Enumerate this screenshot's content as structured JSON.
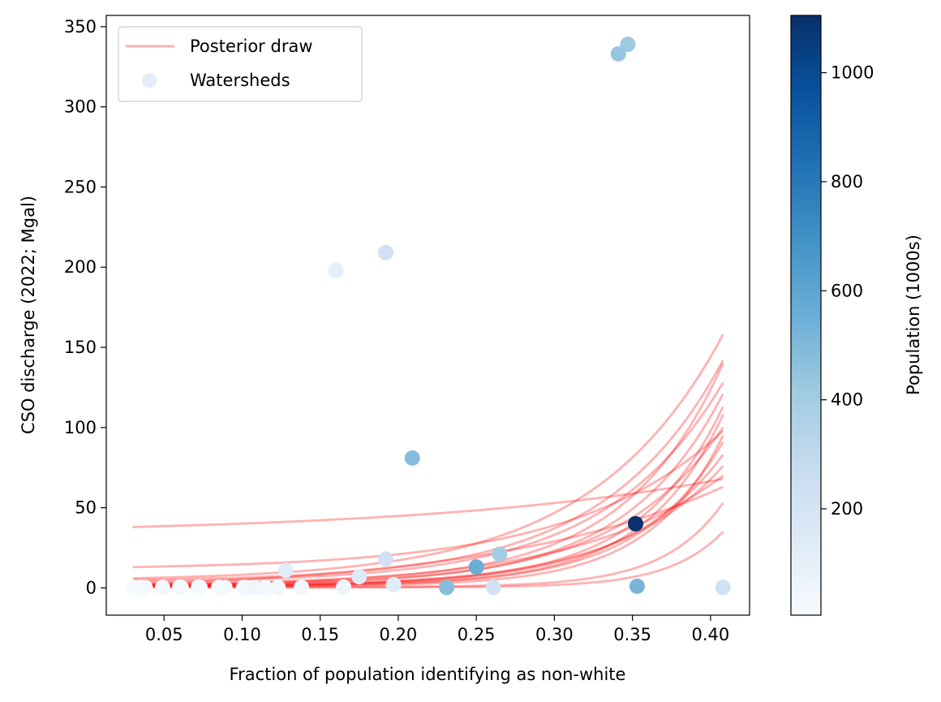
{
  "chart_data": {
    "type": "scatter",
    "title": "",
    "xlabel": "Fraction of population identifying as non-white",
    "ylabel": "CSO discharge (2022; Mgal)",
    "xlim": [
      0.013,
      0.425
    ],
    "ylim": [
      -17,
      357
    ],
    "x_ticks": [
      0.05,
      0.1,
      0.15,
      0.2,
      0.25,
      0.3,
      0.35,
      0.4
    ],
    "x_tick_labels": [
      "0.05",
      "0.10",
      "0.15",
      "0.20",
      "0.25",
      "0.30",
      "0.35",
      "0.40"
    ],
    "y_ticks": [
      0,
      50,
      100,
      150,
      200,
      250,
      300,
      350
    ],
    "y_tick_labels": [
      "0",
      "50",
      "100",
      "150",
      "200",
      "250",
      "300",
      "350"
    ],
    "grid": false,
    "legend": {
      "placement": "top-left",
      "entries": [
        {
          "label": "Posterior draw",
          "kind": "line",
          "color": "#ff0000",
          "alpha": 0.3
        },
        {
          "label": "Watersheds",
          "kind": "marker",
          "color": "#e3eef9"
        }
      ]
    },
    "colorbar": {
      "label": "Population (1000s)",
      "colormap": "Blues",
      "range": [
        5,
        1105
      ],
      "ticks": [
        200,
        400,
        600,
        800,
        1000
      ],
      "tick_labels": [
        "200",
        "400",
        "600",
        "800",
        "1000"
      ]
    },
    "curve_x_range": [
      0.03,
      0.408
    ],
    "posterior_draws": [
      {
        "a": 38,
        "b": 68,
        "k": 2
      },
      {
        "a": 13,
        "b": 98,
        "k": 4
      },
      {
        "a": 5,
        "b": 142,
        "k": 5
      },
      {
        "a": 6,
        "b": 158,
        "k": 4.5
      },
      {
        "a": 3,
        "b": 140,
        "k": 6
      },
      {
        "a": 4,
        "b": 128,
        "k": 5
      },
      {
        "a": 2,
        "b": 121,
        "k": 6
      },
      {
        "a": 2,
        "b": 113,
        "k": 7
      },
      {
        "a": 1.5,
        "b": 108,
        "k": 7.5
      },
      {
        "a": 2,
        "b": 100,
        "k": 5.5
      },
      {
        "a": 1,
        "b": 95,
        "k": 8
      },
      {
        "a": 1,
        "b": 91,
        "k": 7
      },
      {
        "a": 1,
        "b": 83,
        "k": 6
      },
      {
        "a": 1,
        "b": 76,
        "k": 5.5
      },
      {
        "a": 0.5,
        "b": 53,
        "k": 10
      },
      {
        "a": 0.3,
        "b": 35,
        "k": 11
      },
      {
        "a": 2,
        "b": 63,
        "k": 2.5
      },
      {
        "a": 1.5,
        "b": 70,
        "k": 4
      }
    ],
    "watersheds": [
      {
        "x": 0.031,
        "y": 0.2,
        "pop": 15
      },
      {
        "x": 0.035,
        "y": 0.3,
        "pop": 20
      },
      {
        "x": 0.038,
        "y": 0.2,
        "pop": 25
      },
      {
        "x": 0.049,
        "y": 0.3,
        "pop": 30
      },
      {
        "x": 0.06,
        "y": 0.5,
        "pop": 60
      },
      {
        "x": 0.061,
        "y": 0.3,
        "pop": 20
      },
      {
        "x": 0.072,
        "y": 0.5,
        "pop": 40
      },
      {
        "x": 0.073,
        "y": 0.3,
        "pop": 20
      },
      {
        "x": 0.085,
        "y": 0.3,
        "pop": 20
      },
      {
        "x": 0.089,
        "y": 0.2,
        "pop": 25
      },
      {
        "x": 0.101,
        "y": 0.3,
        "pop": 40
      },
      {
        "x": 0.103,
        "y": 0.2,
        "pop": 20
      },
      {
        "x": 0.108,
        "y": 0.3,
        "pop": 50
      },
      {
        "x": 0.115,
        "y": 0.2,
        "pop": 30
      },
      {
        "x": 0.123,
        "y": 0.3,
        "pop": 35
      },
      {
        "x": 0.128,
        "y": 11,
        "pop": 130
      },
      {
        "x": 0.138,
        "y": 0.3,
        "pop": 40
      },
      {
        "x": 0.16,
        "y": 198,
        "pop": 110
      },
      {
        "x": 0.165,
        "y": 0.5,
        "pop": 60
      },
      {
        "x": 0.175,
        "y": 7,
        "pop": 150
      },
      {
        "x": 0.192,
        "y": 209,
        "pop": 220
      },
      {
        "x": 0.192,
        "y": 18,
        "pop": 220
      },
      {
        "x": 0.197,
        "y": 2,
        "pop": 130
      },
      {
        "x": 0.209,
        "y": 81,
        "pop": 480
      },
      {
        "x": 0.231,
        "y": 0.3,
        "pop": 480
      },
      {
        "x": 0.25,
        "y": 13,
        "pop": 560
      },
      {
        "x": 0.261,
        "y": 0.3,
        "pop": 220
      },
      {
        "x": 0.265,
        "y": 21,
        "pop": 400
      },
      {
        "x": 0.341,
        "y": 333,
        "pop": 440
      },
      {
        "x": 0.347,
        "y": 339,
        "pop": 420
      },
      {
        "x": 0.352,
        "y": 40,
        "pop": 1100
      },
      {
        "x": 0.353,
        "y": 1,
        "pop": 520
      },
      {
        "x": 0.408,
        "y": 0.3,
        "pop": 220
      }
    ]
  }
}
